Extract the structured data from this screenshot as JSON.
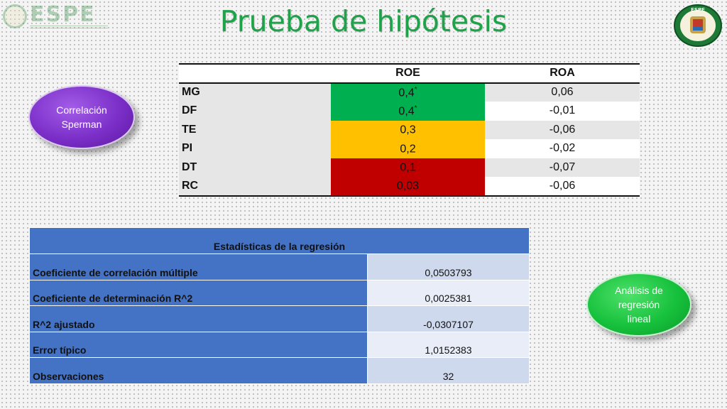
{
  "header": {
    "logo_left_text": "ESPE",
    "title": "Prueba de hipótesis",
    "logo_right_text": "ESPE"
  },
  "colors": {
    "title": "#1fa24a",
    "green_cell": "#00b050",
    "yellow_cell": "#ffc000",
    "red_cell": "#c00000",
    "table_blue": "#4472c4"
  },
  "correlation_table": {
    "headers": [
      "",
      "ROE",
      "ROA"
    ],
    "rows": [
      {
        "label": "MG",
        "roe": "0,4",
        "roe_mark": "*",
        "roa": "0,06",
        "highlight": "#00b050"
      },
      {
        "label": "DF",
        "roe": "0,4",
        "roe_mark": "*",
        "roa": "-0,01",
        "highlight": "#00b050"
      },
      {
        "label": "TE",
        "roe": "0,3",
        "roe_mark": "",
        "roa": "-0,06",
        "highlight": "#ffc000"
      },
      {
        "label": "PI",
        "roe": "0,2",
        "roe_mark": "",
        "roa": "-0,02",
        "highlight": "#ffc000"
      },
      {
        "label": "DT",
        "roe": "0,1",
        "roe_mark": "",
        "roa": "-0,07",
        "highlight": "#c00000"
      },
      {
        "label": "RC",
        "roe": "0,03",
        "roe_mark": "",
        "roa": "-0,06",
        "highlight": "#c00000"
      }
    ]
  },
  "badges": {
    "correlation": "Correlación Sperman",
    "regression": "Análisis de regresión lineal"
  },
  "regression_table": {
    "title": "Estadísticas de la regresión",
    "rows": [
      {
        "key": "Coeficiente de correlación múltiple",
        "value": "0,0503793"
      },
      {
        "key": "Coeficiente de determinación R^2",
        "value": "0,0025381"
      },
      {
        "key": "R^2  ajustado",
        "value": "-0,0307107"
      },
      {
        "key": "Error típico",
        "value": "1,0152383"
      },
      {
        "key": "Observaciones",
        "value": "32"
      }
    ]
  }
}
